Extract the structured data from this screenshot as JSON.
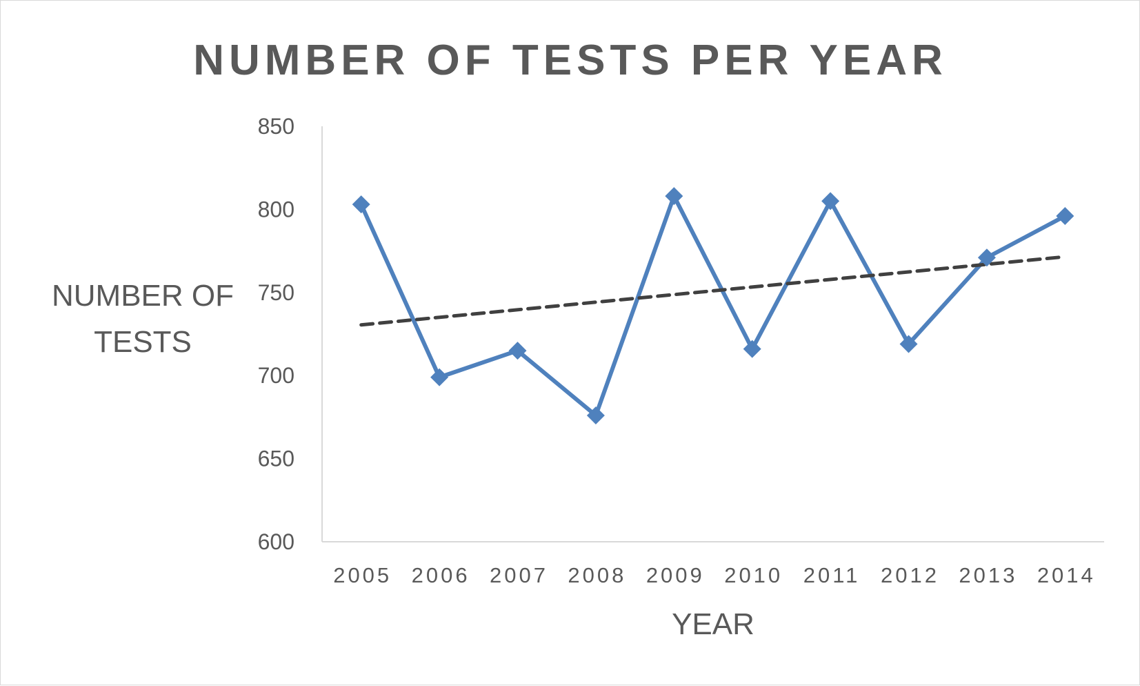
{
  "chart_data": {
    "type": "line",
    "title": "NUMBER OF TESTS PER YEAR",
    "xlabel": "YEAR",
    "ylabel": "NUMBER OF TESTS",
    "categories": [
      "2005",
      "2006",
      "2007",
      "2008",
      "2009",
      "2010",
      "2011",
      "2012",
      "2013",
      "2014"
    ],
    "ylim": [
      600,
      850
    ],
    "yticks": [
      600,
      650,
      700,
      750,
      800,
      850
    ],
    "grid": false,
    "legend": "none",
    "series": [
      {
        "values": [
          803,
          699,
          715,
          676,
          808,
          716,
          805,
          719,
          771,
          796
        ],
        "color": "#4f81bd",
        "marker": "diamond"
      }
    ],
    "trendline": {
      "type": "linear",
      "style": "dashed",
      "color": "#404040",
      "start_value": 730.5,
      "end_value": 771.5
    }
  }
}
